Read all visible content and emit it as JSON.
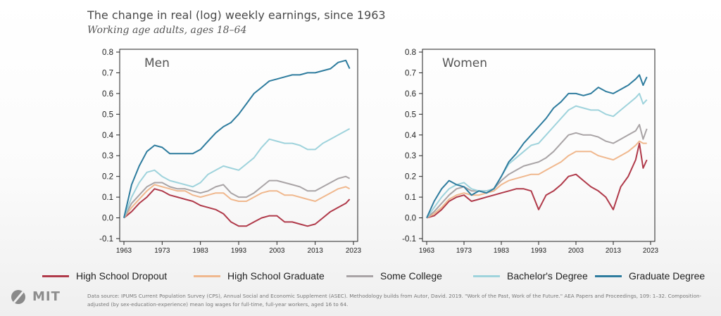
{
  "title": "The change in real (log) weekly earnings, since 1963",
  "subtitle": "Working age adults, ages 18–64",
  "legend": [
    {
      "label": "High School Dropout",
      "color": "#b03a4a"
    },
    {
      "label": "High School Graduate",
      "color": "#f0b88e"
    },
    {
      "label": "Some College",
      "color": "#a9a4a6"
    },
    {
      "label": "Bachelor's Degree",
      "color": "#9fd3dc"
    },
    {
      "label": "Graduate Degree",
      "color": "#2e7c9e"
    }
  ],
  "logo_text": "MIT",
  "source_note": "Data source: IPUMS Current Population Survey (CPS), Annual Social and Economic Supplement (ASEC). Methodology builds from Autor, David. 2019. \"Work of the Past, Work of the Future.\" AEA Papers and Proceedings, 109: 1–32. Composition-adjusted (by sex-education-experience) mean log wages for full-time, full-year workers, aged 16 to 64.",
  "chart_data": [
    {
      "type": "line",
      "panel_label": "Men",
      "xlim": [
        1963,
        2023
      ],
      "ylim": [
        -0.1,
        0.8
      ],
      "xticks": [
        "1963",
        "1973",
        "1983",
        "1993",
        "2003",
        "2013",
        "2023"
      ],
      "yticks": [
        "-0.1",
        "0.0",
        "0.1",
        "0.2",
        "0.3",
        "0.4",
        "0.5",
        "0.6",
        "0.7",
        "0.8"
      ],
      "x": [
        1963,
        1965,
        1967,
        1969,
        1971,
        1973,
        1975,
        1977,
        1979,
        1981,
        1983,
        1985,
        1987,
        1989,
        1991,
        1993,
        1995,
        1997,
        1999,
        2001,
        2003,
        2005,
        2007,
        2009,
        2011,
        2013,
        2015,
        2017,
        2019,
        2021,
        2022
      ],
      "series": [
        {
          "name": "High School Dropout",
          "values": [
            0.0,
            0.03,
            0.07,
            0.1,
            0.14,
            0.13,
            0.11,
            0.1,
            0.09,
            0.08,
            0.06,
            0.05,
            0.04,
            0.02,
            -0.02,
            -0.04,
            -0.04,
            -0.02,
            0.0,
            0.01,
            0.01,
            -0.02,
            -0.02,
            -0.03,
            -0.04,
            -0.03,
            0.0,
            0.03,
            0.05,
            0.07,
            0.09
          ]
        },
        {
          "name": "High School Graduate",
          "values": [
            0.0,
            0.05,
            0.09,
            0.13,
            0.16,
            0.15,
            0.14,
            0.13,
            0.13,
            0.11,
            0.1,
            0.11,
            0.12,
            0.12,
            0.09,
            0.08,
            0.08,
            0.1,
            0.12,
            0.13,
            0.13,
            0.11,
            0.11,
            0.1,
            0.09,
            0.08,
            0.1,
            0.12,
            0.14,
            0.15,
            0.14
          ]
        },
        {
          "name": "Some College",
          "values": [
            0.0,
            0.07,
            0.11,
            0.15,
            0.17,
            0.17,
            0.15,
            0.14,
            0.14,
            0.13,
            0.12,
            0.13,
            0.15,
            0.16,
            0.12,
            0.1,
            0.1,
            0.12,
            0.15,
            0.18,
            0.18,
            0.17,
            0.16,
            0.15,
            0.13,
            0.13,
            0.15,
            0.17,
            0.19,
            0.2,
            0.19
          ]
        },
        {
          "name": "Bachelor's Degree",
          "values": [
            0.0,
            0.1,
            0.17,
            0.22,
            0.23,
            0.2,
            0.18,
            0.17,
            0.16,
            0.15,
            0.17,
            0.21,
            0.23,
            0.25,
            0.24,
            0.23,
            0.26,
            0.29,
            0.34,
            0.38,
            0.37,
            0.36,
            0.36,
            0.35,
            0.33,
            0.33,
            0.36,
            0.38,
            0.4,
            0.42,
            0.43
          ]
        },
        {
          "name": "Graduate Degree",
          "values": [
            0.0,
            0.16,
            0.25,
            0.32,
            0.35,
            0.34,
            0.31,
            0.31,
            0.31,
            0.31,
            0.33,
            0.37,
            0.41,
            0.44,
            0.46,
            0.5,
            0.55,
            0.6,
            0.63,
            0.66,
            0.67,
            0.68,
            0.69,
            0.69,
            0.7,
            0.7,
            0.71,
            0.72,
            0.75,
            0.76,
            0.72
          ]
        }
      ]
    },
    {
      "type": "line",
      "panel_label": "Women",
      "xlim": [
        1963,
        2023
      ],
      "ylim": [
        -0.1,
        0.8
      ],
      "xticks": [
        "1963",
        "1973",
        "1983",
        "1993",
        "2003",
        "2013",
        "2023"
      ],
      "yticks": [
        "-0.1",
        "0.0",
        "0.1",
        "0.2",
        "0.3",
        "0.4",
        "0.5",
        "0.6",
        "0.7",
        "0.8"
      ],
      "x": [
        1963,
        1965,
        1967,
        1969,
        1971,
        1973,
        1975,
        1977,
        1979,
        1981,
        1983,
        1985,
        1987,
        1989,
        1991,
        1993,
        1995,
        1997,
        1999,
        2001,
        2003,
        2005,
        2007,
        2009,
        2011,
        2013,
        2015,
        2017,
        2019,
        2020,
        2021,
        2022
      ],
      "series": [
        {
          "name": "High School Dropout",
          "values": [
            0.0,
            0.01,
            0.04,
            0.08,
            0.1,
            0.11,
            0.08,
            0.09,
            0.1,
            0.11,
            0.12,
            0.13,
            0.14,
            0.14,
            0.13,
            0.04,
            0.11,
            0.13,
            0.16,
            0.2,
            0.21,
            0.18,
            0.15,
            0.13,
            0.1,
            0.04,
            0.15,
            0.2,
            0.28,
            0.36,
            0.24,
            0.28
          ]
        },
        {
          "name": "High School Graduate",
          "values": [
            0.0,
            0.02,
            0.05,
            0.09,
            0.11,
            0.12,
            0.11,
            0.11,
            0.12,
            0.13,
            0.16,
            0.18,
            0.19,
            0.2,
            0.21,
            0.21,
            0.23,
            0.25,
            0.27,
            0.3,
            0.32,
            0.32,
            0.32,
            0.3,
            0.29,
            0.28,
            0.3,
            0.32,
            0.35,
            0.37,
            0.36,
            0.36
          ]
        },
        {
          "name": "Some College",
          "values": [
            0.0,
            0.03,
            0.07,
            0.11,
            0.14,
            0.15,
            0.13,
            0.13,
            0.13,
            0.14,
            0.18,
            0.21,
            0.23,
            0.25,
            0.26,
            0.27,
            0.29,
            0.32,
            0.36,
            0.4,
            0.41,
            0.4,
            0.4,
            0.39,
            0.37,
            0.36,
            0.38,
            0.4,
            0.42,
            0.45,
            0.38,
            0.43
          ]
        },
        {
          "name": "Bachelor's Degree",
          "values": [
            0.0,
            0.05,
            0.1,
            0.14,
            0.16,
            0.17,
            0.14,
            0.13,
            0.13,
            0.14,
            0.2,
            0.26,
            0.29,
            0.32,
            0.35,
            0.36,
            0.4,
            0.44,
            0.48,
            0.52,
            0.54,
            0.53,
            0.52,
            0.52,
            0.5,
            0.49,
            0.52,
            0.55,
            0.58,
            0.6,
            0.55,
            0.57
          ]
        },
        {
          "name": "Graduate Degree",
          "values": [
            0.0,
            0.08,
            0.14,
            0.18,
            0.16,
            0.15,
            0.11,
            0.13,
            0.12,
            0.14,
            0.2,
            0.27,
            0.31,
            0.36,
            0.4,
            0.44,
            0.48,
            0.53,
            0.56,
            0.6,
            0.6,
            0.59,
            0.6,
            0.63,
            0.61,
            0.6,
            0.62,
            0.64,
            0.67,
            0.69,
            0.64,
            0.68
          ]
        }
      ]
    }
  ]
}
